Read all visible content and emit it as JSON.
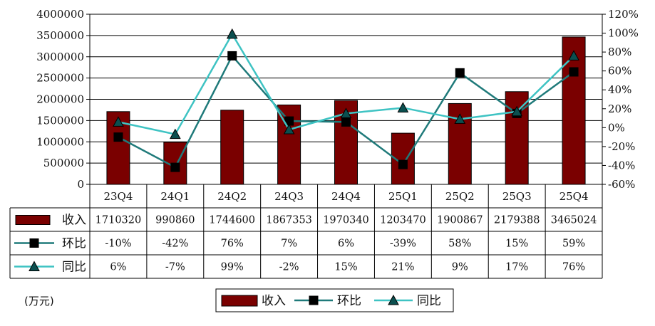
{
  "chart_data": {
    "type": "bar",
    "categories": [
      "23Q4",
      "24Q1",
      "24Q2",
      "24Q3",
      "24Q4",
      "25Q1",
      "25Q2",
      "25Q3",
      "25Q4"
    ],
    "series": [
      {
        "name": "收入",
        "type": "bar",
        "axis": "left",
        "color": "#7a0000",
        "values": [
          1710320,
          990860,
          1744600,
          1867353,
          1970340,
          1203470,
          1900867,
          2179388,
          3465024
        ]
      },
      {
        "name": "环比",
        "type": "line",
        "axis": "right",
        "color": "#1f7a7a",
        "marker": "square",
        "values": [
          -10,
          -42,
          76,
          7,
          6,
          -39,
          58,
          15,
          59
        ]
      },
      {
        "name": "同比",
        "type": "line",
        "axis": "right",
        "color": "#3ec3c3",
        "marker": "triangle",
        "values": [
          6,
          -7,
          99,
          -2,
          15,
          21,
          9,
          17,
          76
        ]
      }
    ],
    "left_axis": {
      "min": 0,
      "max": 4000000,
      "step": 500000,
      "ticks": [
        "0",
        "500000",
        "1000000",
        "1500000",
        "2000000",
        "2500000",
        "3000000",
        "3500000",
        "4000000"
      ]
    },
    "right_axis": {
      "min": -60,
      "max": 120,
      "step": 20,
      "ticks": [
        "-60%",
        "-40%",
        "-20%",
        "0%",
        "20%",
        "40%",
        "60%",
        "80%",
        "100%",
        "120%"
      ]
    },
    "table": {
      "headers": [
        "收入",
        "环比",
        "同比"
      ],
      "rows": [
        [
          "1710320",
          "990860",
          "1744600",
          "1867353",
          "1970340",
          "1203470",
          "1900867",
          "2179388",
          "3465024"
        ],
        [
          "-10%",
          "-42%",
          "76%",
          "7%",
          "6%",
          "-39%",
          "58%",
          "15%",
          "59%"
        ],
        [
          "6%",
          "-7%",
          "99%",
          "-2%",
          "15%",
          "21%",
          "9%",
          "17%",
          "76%"
        ]
      ]
    },
    "legend": {
      "position": "bottom",
      "items": [
        "收入",
        "环比",
        "同比"
      ]
    },
    "grid": true
  },
  "unit_label": "(万元)"
}
